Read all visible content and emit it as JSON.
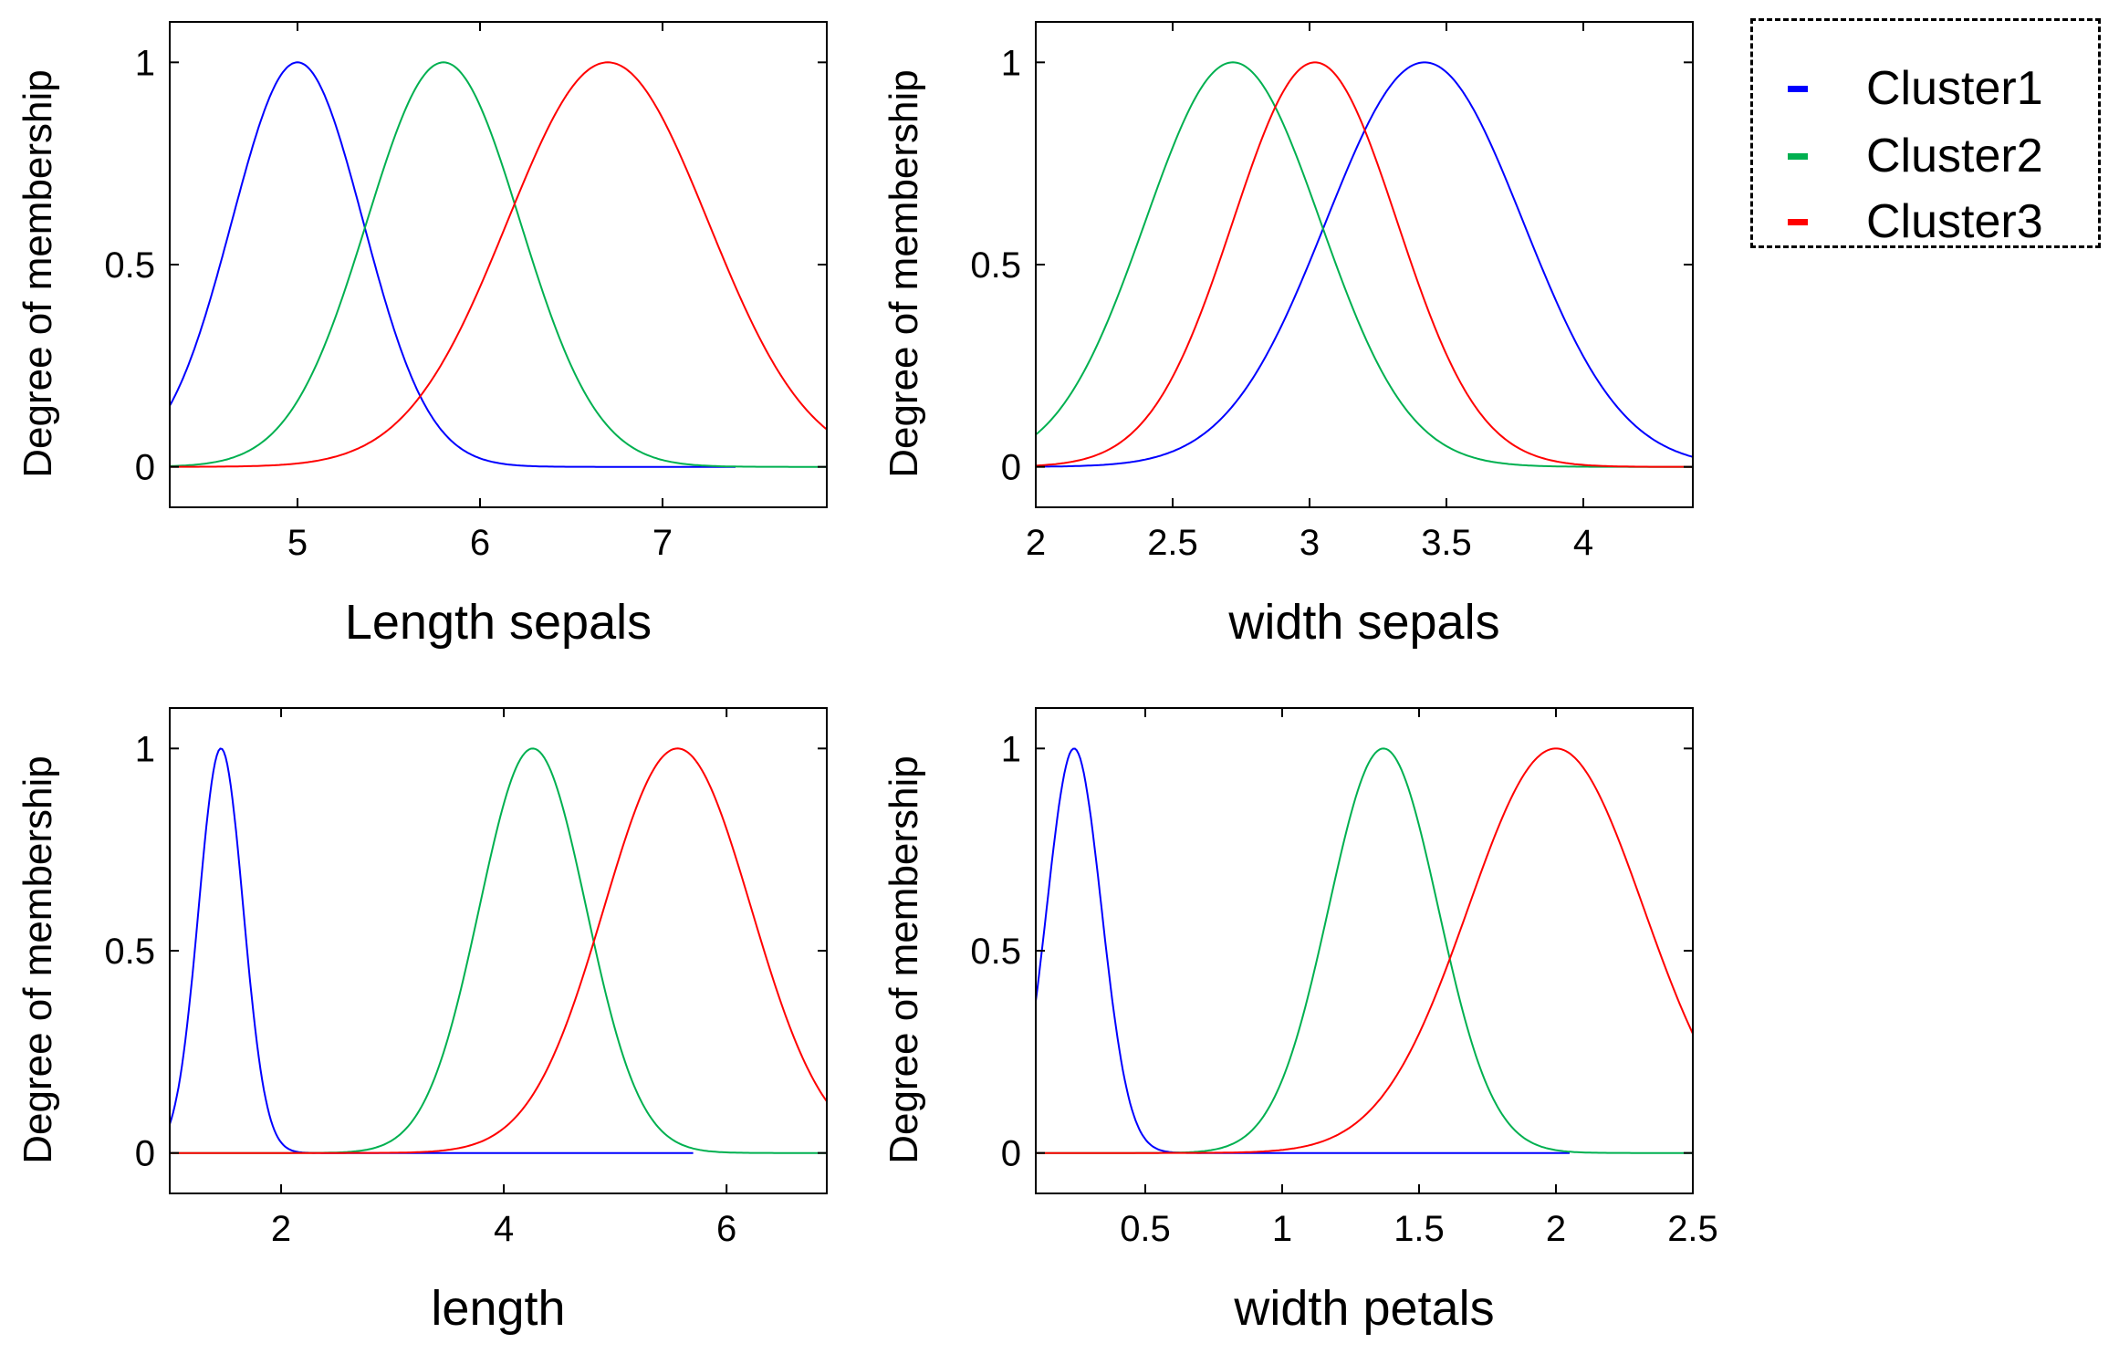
{
  "legend": {
    "items": [
      {
        "label": "Cluster1",
        "color": "#0000ff"
      },
      {
        "label": "Cluster2",
        "color": "#00b050"
      },
      {
        "label": "Cluster3",
        "color": "#ff0000"
      }
    ]
  },
  "chart_data": [
    {
      "type": "line",
      "xlabel": "Length sepals",
      "ylabel": "Degree of membership",
      "xlim": [
        4.3,
        7.9
      ],
      "ylim": [
        -0.1,
        1.1
      ],
      "xticks": [
        5,
        6,
        7
      ],
      "yticks": [
        0,
        0.5,
        1
      ],
      "xtick_labels": [
        "5",
        "6",
        "7"
      ],
      "ytick_labels": [
        "0",
        "0.5",
        "1"
      ],
      "grid": false,
      "series": [
        {
          "legend_index": 0,
          "color": "#0000ff",
          "mean": 5.0,
          "sigma": 0.36,
          "x_range": [
            4.3,
            7.4
          ]
        },
        {
          "legend_index": 1,
          "color": "#00b050",
          "mean": 5.8,
          "sigma": 0.42,
          "x_range": [
            4.3,
            7.9
          ]
        },
        {
          "legend_index": 2,
          "color": "#ff0000",
          "mean": 6.7,
          "sigma": 0.55,
          "x_range": [
            4.3,
            7.9
          ]
        }
      ]
    },
    {
      "type": "line",
      "xlabel": "width sepals",
      "ylabel": "Degree of membership",
      "xlim": [
        2.0,
        4.4
      ],
      "ylim": [
        -0.1,
        1.1
      ],
      "xticks": [
        2,
        2.5,
        3,
        3.5,
        4
      ],
      "yticks": [
        0,
        0.5,
        1
      ],
      "xtick_labels": [
        "2",
        "2.5",
        "3",
        "3.5",
        "4"
      ],
      "ytick_labels": [
        "0",
        "0.5",
        "1"
      ],
      "grid": false,
      "series": [
        {
          "legend_index": 0,
          "color": "#0000ff",
          "mean": 3.42,
          "sigma": 0.36,
          "x_range": [
            2.0,
            4.4
          ]
        },
        {
          "legend_index": 1,
          "color": "#00b050",
          "mean": 2.72,
          "sigma": 0.32,
          "x_range": [
            2.0,
            4.4
          ]
        },
        {
          "legend_index": 2,
          "color": "#ff0000",
          "mean": 3.02,
          "sigma": 0.3,
          "x_range": [
            2.0,
            4.4
          ]
        }
      ]
    },
    {
      "type": "line",
      "xlabel": "length",
      "ylabel": "Degree of membership",
      "xlim": [
        1.0,
        6.9
      ],
      "ylim": [
        -0.1,
        1.1
      ],
      "xticks": [
        2,
        4,
        6
      ],
      "yticks": [
        0,
        0.5,
        1
      ],
      "xtick_labels": [
        "2",
        "4",
        "6"
      ],
      "ytick_labels": [
        "0",
        "0.5",
        "1"
      ],
      "grid": false,
      "series": [
        {
          "legend_index": 0,
          "color": "#0000ff",
          "mean": 1.46,
          "sigma": 0.2,
          "x_range": [
            1.0,
            5.7
          ]
        },
        {
          "legend_index": 1,
          "color": "#00b050",
          "mean": 4.26,
          "sigma": 0.48,
          "x_range": [
            1.0,
            6.9
          ]
        },
        {
          "legend_index": 2,
          "color": "#ff0000",
          "mean": 5.56,
          "sigma": 0.66,
          "x_range": [
            1.0,
            6.9
          ]
        }
      ]
    },
    {
      "type": "line",
      "xlabel": "width petals",
      "ylabel": "Degree of membership",
      "xlim": [
        0.1,
        2.5
      ],
      "ylim": [
        -0.1,
        1.1
      ],
      "xticks": [
        0.5,
        1,
        1.5,
        2,
        2.5
      ],
      "yticks": [
        0,
        0.5,
        1
      ],
      "xtick_labels": [
        "0.5",
        "1",
        "1.5",
        "2",
        "2.5"
      ],
      "ytick_labels": [
        "0",
        "0.5",
        "1"
      ],
      "grid": false,
      "series": [
        {
          "legend_index": 0,
          "color": "#0000ff",
          "mean": 0.24,
          "sigma": 0.1,
          "x_range": [
            0.1,
            2.05
          ]
        },
        {
          "legend_index": 1,
          "color": "#00b050",
          "mean": 1.37,
          "sigma": 0.2,
          "x_range": [
            0.1,
            2.5
          ]
        },
        {
          "legend_index": 2,
          "color": "#ff0000",
          "mean": 2.0,
          "sigma": 0.32,
          "x_range": [
            0.1,
            2.5
          ]
        }
      ]
    }
  ]
}
